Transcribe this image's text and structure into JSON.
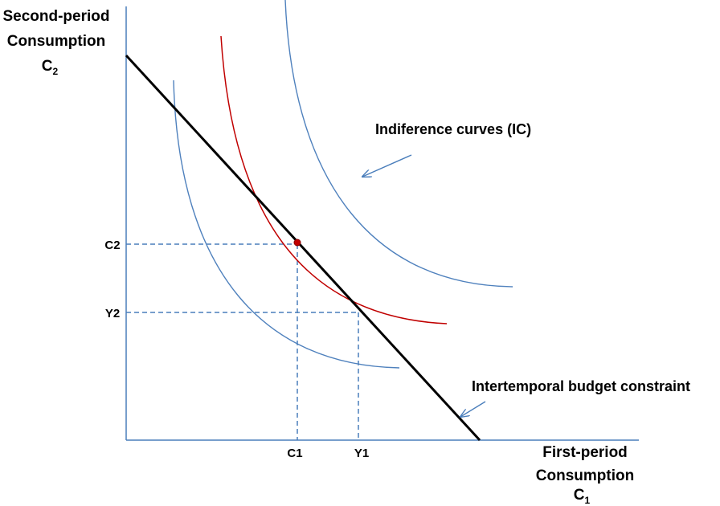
{
  "y_axis_title": {
    "line1": "Second-period",
    "line2": "Consumption",
    "symbol": "C",
    "subscript": "2"
  },
  "x_axis_title": {
    "line1": "First-period",
    "line2": "Consumption",
    "symbol": "C",
    "subscript": "1"
  },
  "ticks": {
    "y": [
      "C2",
      "Y2"
    ],
    "x": [
      "C1",
      "Y1"
    ]
  },
  "annotations": {
    "indifference_curves": "Indiference curves (IC)",
    "budget_constraint": "Intertemporal budget constraint"
  },
  "colors": {
    "axis": "#4a7ebb",
    "indifference_curve": "#4f81bd",
    "optimal_curve": "#c00000",
    "budget_line": "#000000",
    "guide_lines": "#4a7ebb",
    "optimum_point": "#c00000"
  }
}
